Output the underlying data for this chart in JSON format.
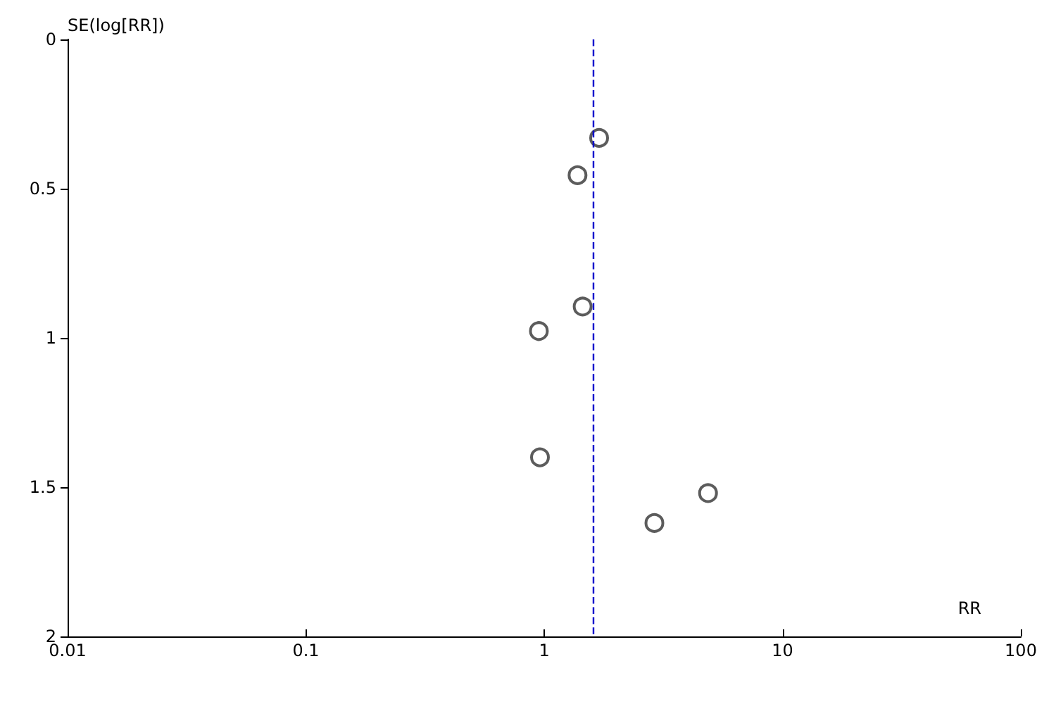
{
  "chart_data": {
    "type": "scatter",
    "xlabel": "RR",
    "ylabel": "SE(log[RR])",
    "x": [
      1.7,
      1.38,
      1.45,
      0.95,
      0.96,
      4.87,
      2.9
    ],
    "values": [
      0.33,
      0.455,
      0.895,
      0.977,
      1.4,
      1.52,
      1.62
    ],
    "color": "#333333",
    "marker": "circle",
    "log": "x",
    "grid": false,
    "xlim": [
      0.01,
      100
    ],
    "xticks": [
      0.01,
      0.1,
      1,
      10,
      100
    ],
    "ylim": [
      2,
      0
    ],
    "yticks": [
      0,
      0.5,
      1,
      1.5,
      2
    ],
    "ref_lines": [
      {
        "axis": "x",
        "value": 1.61,
        "color": "#0000cc",
        "line_style": "dashed"
      }
    ]
  }
}
